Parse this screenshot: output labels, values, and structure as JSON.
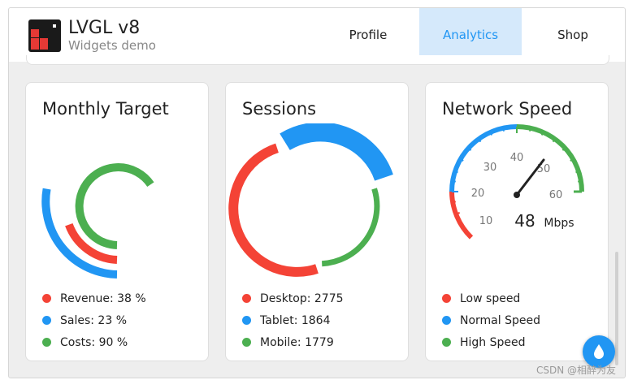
{
  "header": {
    "title": "LVGL v8",
    "subtitle": "Widgets demo",
    "tabs": [
      {
        "label": "Profile",
        "active": false
      },
      {
        "label": "Analytics",
        "active": true
      },
      {
        "label": "Shop",
        "active": false
      }
    ]
  },
  "cards": {
    "monthly_target": {
      "title": "Monthly Target",
      "legend": [
        {
          "label": "Revenue: 38 %",
          "color": "#f44336"
        },
        {
          "label": "Sales: 23 %",
          "color": "#2196f3"
        },
        {
          "label": "Costs: 90 %",
          "color": "#4caf50"
        }
      ]
    },
    "sessions": {
      "title": "Sessions",
      "legend": [
        {
          "label": "Desktop: 2775",
          "color": "#f44336"
        },
        {
          "label": "Tablet: 1864",
          "color": "#2196f3"
        },
        {
          "label": "Mobile: 1779",
          "color": "#4caf50"
        }
      ]
    },
    "network_speed": {
      "title": "Network Speed",
      "value": "48",
      "unit": "Mbps",
      "scale_labels": [
        "10",
        "20",
        "30",
        "40",
        "50",
        "60"
      ],
      "legend": [
        {
          "label": "Low speed",
          "color": "#f44336"
        },
        {
          "label": "Normal Speed",
          "color": "#2196f3"
        },
        {
          "label": "High Speed",
          "color": "#4caf50"
        }
      ]
    }
  },
  "watermark": "CSDN @相醉为友",
  "colors": {
    "accent": "#2196f3",
    "red": "#f44336",
    "green": "#4caf50",
    "text": "#222222"
  }
}
